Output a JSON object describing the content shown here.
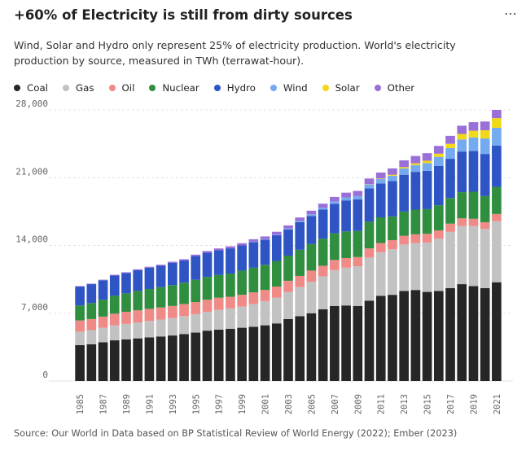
{
  "header": {
    "title": "+60% of Electricity is still from dirty sources",
    "menu_label": "⋯",
    "subtitle": "Wind, Solar and Hydro only represent 25% of electricity production. World's electricity production by source, measured in TWh (terrawat-hour)."
  },
  "legend": [
    {
      "label": "Coal",
      "color": "#262626"
    },
    {
      "label": "Gas",
      "color": "#c2c2c2"
    },
    {
      "label": "Oil",
      "color": "#f08a87"
    },
    {
      "label": "Nuclear",
      "color": "#2f8f3f"
    },
    {
      "label": "Hydro",
      "color": "#2f54c4"
    },
    {
      "label": "Wind",
      "color": "#74aaf0"
    },
    {
      "label": "Solar",
      "color": "#f2d917"
    },
    {
      "label": "Other",
      "color": "#9a6fd8"
    }
  ],
  "source": "Source: Our World in Data based on BP Statistical Review of World Energy (2022); Ember (2023)",
  "chart_data": {
    "type": "bar",
    "stacked": true,
    "categories": [
      "1985",
      "1986",
      "1987",
      "1988",
      "1989",
      "1990",
      "1991",
      "1992",
      "1993",
      "1994",
      "1995",
      "1996",
      "1997",
      "1998",
      "1999",
      "2000",
      "2001",
      "2002",
      "2003",
      "2004",
      "2005",
      "2006",
      "2007",
      "2008",
      "2009",
      "2010",
      "2011",
      "2012",
      "2013",
      "2014",
      "2015",
      "2016",
      "2017",
      "2018",
      "2019",
      "2020",
      "2021"
    ],
    "x_tick_labels": [
      "1985",
      "1987",
      "1989",
      "1991",
      "1993",
      "1995",
      "1997",
      "1999",
      "2001",
      "2003",
      "2005",
      "2007",
      "2009",
      "2011",
      "2013",
      "2015",
      "2017",
      "2019",
      "2021"
    ],
    "ylim": [
      0,
      28000
    ],
    "yticks": [
      "0",
      "7,000",
      "14,000",
      "21,000",
      "28,000"
    ],
    "ytick_values": [
      0,
      7000,
      14000,
      21000,
      28000
    ],
    "grid": true,
    "series": [
      {
        "name": "Coal",
        "values": [
          3700,
          3800,
          4000,
          4200,
          4300,
          4400,
          4500,
          4600,
          4700,
          4850,
          5000,
          5200,
          5300,
          5400,
          5500,
          5600,
          5750,
          5950,
          6400,
          6700,
          7000,
          7400,
          7750,
          7800,
          7750,
          8300,
          8800,
          8900,
          9300,
          9400,
          9200,
          9300,
          9600,
          10000,
          9800,
          9600,
          10200
        ]
      },
      {
        "name": "Gas",
        "values": [
          1400,
          1450,
          1500,
          1550,
          1600,
          1650,
          1700,
          1750,
          1800,
          1850,
          1900,
          1950,
          2050,
          2100,
          2200,
          2350,
          2500,
          2650,
          2800,
          3000,
          3250,
          3400,
          3700,
          3900,
          4100,
          4450,
          4500,
          4700,
          4800,
          4850,
          5100,
          5400,
          5800,
          6000,
          6200,
          6100,
          6300
        ]
      },
      {
        "name": "Oil",
        "values": [
          1150,
          1150,
          1150,
          1200,
          1250,
          1250,
          1250,
          1250,
          1250,
          1250,
          1250,
          1250,
          1250,
          1200,
          1200,
          1200,
          1150,
          1150,
          1150,
          1150,
          1150,
          1100,
          1050,
          1000,
          950,
          950,
          950,
          950,
          900,
          900,
          900,
          850,
          850,
          800,
          750,
          700,
          750
        ]
      },
      {
        "name": "Nuclear",
        "values": [
          1550,
          1650,
          1750,
          1850,
          1900,
          2000,
          2050,
          2100,
          2150,
          2200,
          2300,
          2350,
          2350,
          2400,
          2500,
          2550,
          2600,
          2650,
          2600,
          2700,
          2750,
          2800,
          2750,
          2750,
          2700,
          2750,
          2650,
          2450,
          2500,
          2550,
          2550,
          2600,
          2650,
          2700,
          2800,
          2700,
          2800
        ]
      },
      {
        "name": "Hydro",
        "values": [
          1950,
          1950,
          2000,
          2100,
          2100,
          2150,
          2200,
          2200,
          2300,
          2300,
          2450,
          2500,
          2550,
          2600,
          2600,
          2650,
          2600,
          2650,
          2700,
          2850,
          2900,
          3000,
          3050,
          3200,
          3250,
          3450,
          3500,
          3650,
          3800,
          3900,
          3950,
          4050,
          4050,
          4200,
          4200,
          4350,
          4250
        ]
      },
      {
        "name": "Wind",
        "values": [
          0,
          0,
          0,
          0,
          0,
          0,
          0,
          0,
          0,
          0,
          0,
          0,
          0,
          0,
          0,
          40,
          50,
          60,
          90,
          130,
          160,
          190,
          250,
          300,
          350,
          400,
          450,
          550,
          650,
          700,
          800,
          950,
          1100,
          1250,
          1400,
          1600,
          1850
        ]
      },
      {
        "name": "Solar",
        "values": [
          0,
          0,
          0,
          0,
          0,
          0,
          0,
          0,
          0,
          0,
          0,
          0,
          0,
          0,
          0,
          0,
          0,
          0,
          0,
          0,
          0,
          0,
          0,
          0,
          0,
          30,
          60,
          100,
          140,
          190,
          250,
          330,
          450,
          570,
          700,
          850,
          1000
        ]
      },
      {
        "name": "Other",
        "values": [
          50,
          50,
          60,
          70,
          80,
          90,
          100,
          110,
          120,
          130,
          150,
          170,
          190,
          210,
          230,
          250,
          280,
          300,
          330,
          360,
          380,
          420,
          460,
          500,
          530,
          580,
          620,
          660,
          700,
          750,
          780,
          800,
          820,
          850,
          880,
          900,
          850
        ]
      }
    ]
  }
}
